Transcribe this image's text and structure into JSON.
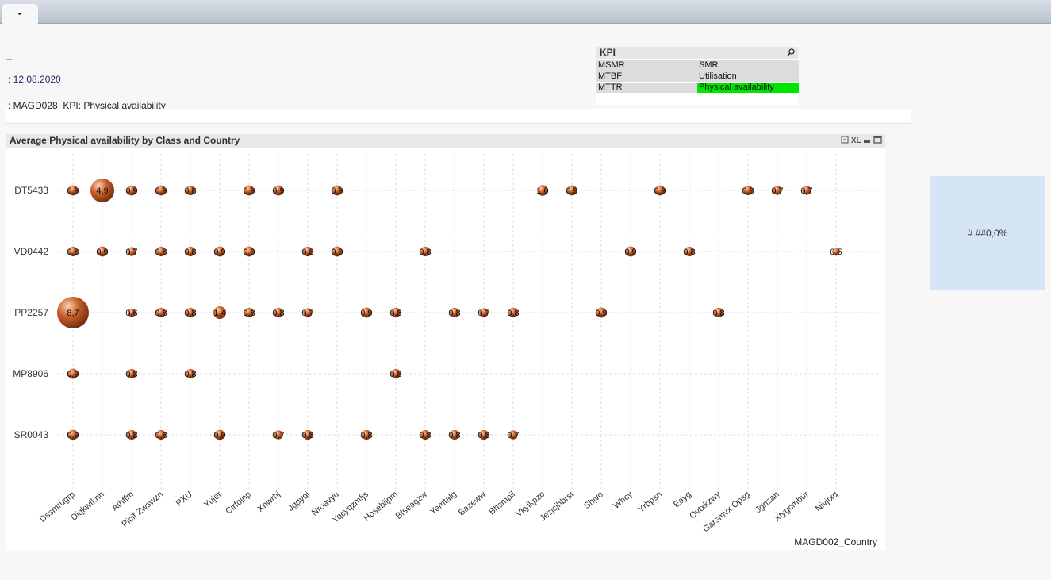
{
  "tab": {
    "label": "-"
  },
  "header": {
    "dash": "–",
    "date": ": 12.08.2020",
    "subtitle": ": MAGD028_KPI: Physical availability"
  },
  "kpi_box": {
    "title": "KPI",
    "items": [
      "MSMR",
      "SMR",
      "MTBF",
      "Utilisation",
      "MTTR",
      "Physical availability"
    ],
    "selected": "Physical availability"
  },
  "side_box": {
    "text": "#.##0,0%"
  },
  "chart_toolbar": {
    "xl": "XL"
  },
  "chart_data": {
    "type": "grid_bubble",
    "title": "Average Physical availability by Class and Country",
    "x_label": "MAGD002_Country",
    "color": "#c8602a",
    "grid": true,
    "categories": [
      "Dssmrugrp",
      "Diqkwfknh",
      "Athffm",
      "Picif Zwswzn",
      "PXU",
      "Yujer",
      "Cirfojnp",
      "Xnwrhj",
      "Jggyqi",
      "Nroavyu",
      "Yqcyqzmfjs",
      "Hosebiipm",
      "Bfseagzw",
      "Yemtalg",
      "Bazeww",
      "Bhsmpil",
      "Vkyikpzc",
      "Jezjcjhbrst",
      "Shjvo",
      "Whcy",
      "Yrbpsn",
      "Eayg",
      "Ovtxkzwy",
      "Garsmvx Opsg",
      "Jgnzah",
      "Xtygcmbur",
      "Nivjtxq"
    ],
    "series": [
      {
        "name": "DT5433",
        "values": [
          0.9,
          4.9,
          0.9,
          0.9,
          0.8,
          null,
          0.9,
          0.9,
          null,
          0.9,
          null,
          null,
          null,
          null,
          null,
          null,
          1.0,
          0.9,
          null,
          null,
          0.9,
          null,
          null,
          0.8,
          0.7,
          0.7,
          null
        ],
        "value_labels": [
          "0,9",
          "4,9",
          "0,9",
          "0,9",
          "0,8",
          null,
          "0,9",
          "0,9",
          null,
          "0,9",
          null,
          null,
          null,
          null,
          null,
          null,
          "1,0",
          "0,9",
          null,
          null,
          "0,9",
          null,
          null,
          "0,8",
          "0,7",
          "0,7",
          null
        ]
      },
      {
        "name": "VD0442",
        "values": [
          0.8,
          0.9,
          0.7,
          0.8,
          0.8,
          0.9,
          0.9,
          null,
          0.8,
          0.9,
          null,
          null,
          0.8,
          null,
          null,
          null,
          null,
          null,
          null,
          0.9,
          null,
          0.8,
          null,
          null,
          null,
          null,
          0.5
        ],
        "value_labels": [
          "0,8",
          "0,9",
          "0,7",
          "0,8",
          "0,8",
          "0,9",
          "0,9",
          null,
          "0,8",
          "0,9",
          null,
          null,
          "0,8",
          null,
          null,
          null,
          null,
          null,
          null,
          "0,9",
          null,
          "0,8",
          null,
          null,
          null,
          null,
          "0,5"
        ]
      },
      {
        "name": "PP2257",
        "values": [
          8.7,
          null,
          0.6,
          0.8,
          0.8,
          1.4,
          0.8,
          0.8,
          0.7,
          null,
          0.9,
          0.8,
          null,
          0.8,
          0.7,
          0.8,
          null,
          null,
          0.9,
          null,
          null,
          null,
          0.8,
          null,
          null,
          null,
          null
        ],
        "value_labels": [
          "8,7",
          null,
          "0,6",
          "0,8",
          "0,8",
          "1,4",
          "0,8",
          "0,8",
          "0,7",
          null,
          "0,9",
          "0,8",
          null,
          "0,8",
          "0,7",
          "0,8",
          null,
          null,
          "0,9",
          null,
          null,
          null,
          "0,8",
          null,
          null,
          null,
          null
        ]
      },
      {
        "name": "MP8906",
        "values": [
          0.9,
          null,
          0.8,
          null,
          0.8,
          null,
          null,
          null,
          null,
          null,
          null,
          0.8,
          null,
          null,
          null,
          null,
          null,
          null,
          null,
          null,
          null,
          null,
          null,
          null,
          null,
          null,
          null
        ],
        "value_labels": [
          "0,9",
          null,
          "0,8",
          null,
          "0,8",
          null,
          null,
          null,
          null,
          null,
          null,
          "0,8",
          null,
          null,
          null,
          null,
          null,
          null,
          null,
          null,
          null,
          null,
          null,
          null,
          null,
          null,
          null
        ]
      },
      {
        "name": "SR0043",
        "values": [
          0.9,
          null,
          0.8,
          0.8,
          null,
          0.9,
          null,
          0.7,
          0.8,
          null,
          0.8,
          null,
          0.8,
          0.8,
          0.8,
          0.7,
          null,
          null,
          null,
          null,
          null,
          null,
          null,
          null,
          null,
          null,
          null
        ],
        "value_labels": [
          "0,9",
          null,
          "0,8",
          "0,8",
          null,
          "0,9",
          null,
          "0,7",
          "0,8",
          null,
          "0,8",
          null,
          "0,8",
          "0,8",
          "0,8",
          "0,7",
          null,
          null,
          null,
          null,
          null,
          null,
          null,
          null,
          null,
          null,
          null
        ]
      }
    ]
  }
}
